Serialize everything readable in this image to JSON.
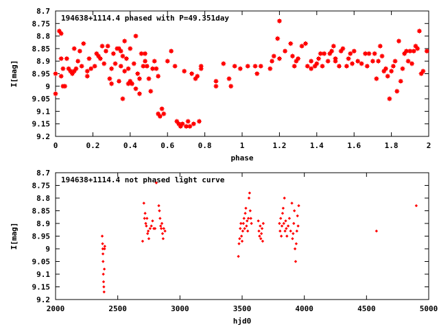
{
  "chart_data": [
    {
      "type": "scatter",
      "title": "194638+1114.4 phased with P=49.351day",
      "xlabel": "phase",
      "ylabel": "I[mag]",
      "xlim": [
        0,
        2
      ],
      "ylim": [
        9.2,
        8.7
      ],
      "y_inverted": true,
      "x_ticks": [
        "0",
        "0.2",
        "0.4",
        "0.6",
        "0.8",
        "1",
        "1.2",
        "1.4",
        "1.6",
        "1.8",
        "2"
      ],
      "y_ticks": [
        "8.7",
        "8.75",
        "8.8",
        "8.85",
        "8.9",
        "8.95",
        "9",
        "9.05",
        "9.1",
        "9.15",
        "9.2"
      ],
      "marker_color": "#ff0000",
      "points": [
        [
          0.0,
          8.95
        ],
        [
          0.0,
          9.03
        ],
        [
          0.02,
          8.78
        ],
        [
          0.03,
          8.79
        ],
        [
          0.03,
          8.89
        ],
        [
          0.03,
          8.96
        ],
        [
          0.04,
          8.93
        ],
        [
          0.04,
          9.0
        ],
        [
          0.05,
          9.0
        ],
        [
          0.06,
          8.89
        ],
        [
          0.07,
          8.93
        ],
        [
          0.08,
          8.94
        ],
        [
          0.09,
          8.95
        ],
        [
          0.1,
          8.94
        ],
        [
          0.1,
          8.85
        ],
        [
          0.11,
          8.93
        ],
        [
          0.12,
          8.9
        ],
        [
          0.13,
          8.86
        ],
        [
          0.14,
          8.92
        ],
        [
          0.15,
          8.83
        ],
        [
          0.17,
          8.96
        ],
        [
          0.17,
          8.94
        ],
        [
          0.18,
          8.89
        ],
        [
          0.19,
          8.93
        ],
        [
          0.21,
          8.92
        ],
        [
          0.22,
          8.87
        ],
        [
          0.23,
          8.88
        ],
        [
          0.24,
          8.89
        ],
        [
          0.25,
          8.84
        ],
        [
          0.26,
          8.91
        ],
        [
          0.27,
          8.86
        ],
        [
          0.28,
          8.84
        ],
        [
          0.29,
          8.97
        ],
        [
          0.3,
          8.93
        ],
        [
          0.3,
          8.99
        ],
        [
          0.31,
          8.87
        ],
        [
          0.32,
          8.91
        ],
        [
          0.33,
          8.85
        ],
        [
          0.34,
          8.85
        ],
        [
          0.34,
          8.98
        ],
        [
          0.35,
          8.86
        ],
        [
          0.35,
          8.92
        ],
        [
          0.36,
          8.88
        ],
        [
          0.36,
          9.05
        ],
        [
          0.37,
          8.82
        ],
        [
          0.37,
          8.94
        ],
        [
          0.38,
          8.89
        ],
        [
          0.39,
          8.99
        ],
        [
          0.39,
          8.93
        ],
        [
          0.4,
          8.85
        ],
        [
          0.4,
          8.98
        ],
        [
          0.41,
          8.99
        ],
        [
          0.42,
          8.91
        ],
        [
          0.43,
          8.8
        ],
        [
          0.43,
          9.01
        ],
        [
          0.44,
          8.95
        ],
        [
          0.45,
          8.97
        ],
        [
          0.45,
          9.03
        ],
        [
          0.46,
          8.87
        ],
        [
          0.47,
          8.92
        ],
        [
          0.48,
          8.9
        ],
        [
          0.48,
          8.87
        ],
        [
          0.49,
          8.92
        ],
        [
          0.5,
          8.97
        ],
        [
          0.51,
          9.02
        ],
        [
          0.52,
          8.93
        ],
        [
          0.53,
          8.9
        ],
        [
          0.54,
          8.93
        ],
        [
          0.55,
          8.96
        ],
        [
          0.55,
          9.11
        ],
        [
          0.56,
          9.12
        ],
        [
          0.57,
          9.09
        ],
        [
          0.58,
          9.11
        ],
        [
          0.6,
          8.9
        ],
        [
          0.62,
          8.86
        ],
        [
          0.64,
          8.92
        ],
        [
          0.65,
          9.14
        ],
        [
          0.66,
          9.15
        ],
        [
          0.67,
          9.16
        ],
        [
          0.68,
          9.15
        ],
        [
          0.69,
          8.94
        ],
        [
          0.7,
          9.16
        ],
        [
          0.71,
          9.14
        ],
        [
          0.72,
          9.16
        ],
        [
          0.73,
          8.95
        ],
        [
          0.74,
          9.15
        ],
        [
          0.75,
          8.97
        ],
        [
          0.76,
          8.96
        ],
        [
          0.77,
          9.14
        ],
        [
          0.78,
          8.93
        ],
        [
          0.78,
          8.92
        ],
        [
          0.86,
          8.98
        ],
        [
          0.86,
          9.0
        ],
        [
          0.9,
          8.91
        ],
        [
          0.93,
          8.97
        ],
        [
          0.94,
          9.0
        ],
        [
          0.96,
          8.92
        ],
        [
          0.99,
          8.93
        ],
        [
          1.03,
          8.92
        ],
        [
          1.07,
          8.92
        ],
        [
          1.08,
          8.95
        ],
        [
          1.1,
          8.92
        ],
        [
          1.15,
          8.93
        ],
        [
          1.16,
          8.9
        ],
        [
          1.17,
          8.88
        ],
        [
          1.19,
          8.81
        ],
        [
          1.2,
          8.74
        ],
        [
          1.2,
          8.89
        ],
        [
          1.23,
          8.86
        ],
        [
          1.26,
          8.83
        ],
        [
          1.27,
          8.88
        ],
        [
          1.28,
          8.92
        ],
        [
          1.29,
          8.9
        ],
        [
          1.3,
          8.89
        ],
        [
          1.32,
          8.84
        ],
        [
          1.34,
          8.83
        ],
        [
          1.35,
          8.92
        ],
        [
          1.37,
          8.9
        ],
        [
          1.37,
          8.93
        ],
        [
          1.39,
          8.92
        ],
        [
          1.4,
          8.91
        ],
        [
          1.41,
          8.89
        ],
        [
          1.42,
          8.87
        ],
        [
          1.43,
          8.92
        ],
        [
          1.44,
          8.87
        ],
        [
          1.46,
          8.9
        ],
        [
          1.47,
          8.87
        ],
        [
          1.48,
          8.86
        ],
        [
          1.49,
          8.84
        ],
        [
          1.5,
          8.89
        ],
        [
          1.5,
          8.9
        ],
        [
          1.52,
          8.92
        ],
        [
          1.53,
          8.86
        ],
        [
          1.54,
          8.85
        ],
        [
          1.56,
          8.92
        ],
        [
          1.57,
          8.89
        ],
        [
          1.58,
          8.87
        ],
        [
          1.59,
          8.91
        ],
        [
          1.6,
          8.86
        ],
        [
          1.62,
          8.9
        ],
        [
          1.64,
          8.91
        ],
        [
          1.66,
          8.87
        ],
        [
          1.67,
          8.92
        ],
        [
          1.68,
          8.87
        ],
        [
          1.7,
          8.9
        ],
        [
          1.71,
          8.87
        ],
        [
          1.72,
          8.97
        ],
        [
          1.73,
          8.9
        ],
        [
          1.74,
          8.84
        ],
        [
          1.75,
          8.88
        ],
        [
          1.76,
          8.94
        ],
        [
          1.77,
          8.93
        ],
        [
          1.78,
          8.96
        ],
        [
          1.79,
          9.05
        ],
        [
          1.8,
          8.94
        ],
        [
          1.81,
          8.92
        ],
        [
          1.82,
          8.9
        ],
        [
          1.83,
          9.02
        ],
        [
          1.84,
          8.82
        ],
        [
          1.85,
          8.98
        ],
        [
          1.86,
          8.93
        ],
        [
          1.87,
          8.87
        ],
        [
          1.88,
          8.86
        ],
        [
          1.89,
          8.9
        ],
        [
          1.9,
          8.86
        ],
        [
          1.91,
          8.91
        ],
        [
          1.92,
          8.86
        ],
        [
          1.93,
          8.84
        ],
        [
          1.94,
          8.85
        ],
        [
          1.95,
          8.78
        ],
        [
          1.96,
          8.95
        ],
        [
          1.97,
          8.94
        ],
        [
          1.99,
          8.86
        ]
      ]
    },
    {
      "type": "scatter",
      "title": "194638+1114.4 not phased light curve",
      "xlabel": "hjd0",
      "ylabel": "I[mag]",
      "xlim": [
        2000,
        5000
      ],
      "ylim": [
        9.2,
        8.7
      ],
      "y_inverted": true,
      "x_ticks": [
        "2000",
        "2500",
        "3000",
        "3500",
        "4000",
        "4500",
        "5000"
      ],
      "y_ticks": [
        "8.7",
        "8.75",
        "8.8",
        "8.85",
        "8.9",
        "8.95",
        "9",
        "9.05",
        "9.1",
        "9.15",
        "9.2"
      ],
      "marker_color": "#ff0000",
      "points": [
        [
          2375,
          8.95
        ],
        [
          2378,
          8.98
        ],
        [
          2380,
          9.0
        ],
        [
          2381,
          9.02
        ],
        [
          2382,
          9.05
        ],
        [
          2384,
          9.1
        ],
        [
          2386,
          9.13
        ],
        [
          2388,
          9.15
        ],
        [
          2390,
          9.17
        ],
        [
          2392,
          9.08
        ],
        [
          2394,
          9.0
        ],
        [
          2396,
          8.99
        ],
        [
          2700,
          8.97
        ],
        [
          2710,
          8.82
        ],
        [
          2715,
          8.88
        ],
        [
          2720,
          8.86
        ],
        [
          2725,
          8.9
        ],
        [
          2730,
          8.91
        ],
        [
          2735,
          8.88
        ],
        [
          2740,
          8.94
        ],
        [
          2745,
          8.93
        ],
        [
          2750,
          8.96
        ],
        [
          2760,
          8.92
        ],
        [
          2770,
          8.91
        ],
        [
          2780,
          8.89
        ],
        [
          2790,
          8.92
        ],
        [
          2800,
          8.92
        ],
        [
          2810,
          8.74
        ],
        [
          2830,
          8.83
        ],
        [
          2835,
          8.85
        ],
        [
          2840,
          8.88
        ],
        [
          2845,
          8.91
        ],
        [
          2850,
          8.92
        ],
        [
          2855,
          8.9
        ],
        [
          2860,
          8.94
        ],
        [
          2865,
          8.96
        ],
        [
          2870,
          8.92
        ],
        [
          2880,
          8.93
        ],
        [
          3470,
          9.03
        ],
        [
          3475,
          8.98
        ],
        [
          3480,
          8.96
        ],
        [
          3485,
          8.92
        ],
        [
          3490,
          8.9
        ],
        [
          3495,
          8.95
        ],
        [
          3500,
          8.97
        ],
        [
          3505,
          8.93
        ],
        [
          3510,
          8.9
        ],
        [
          3515,
          8.88
        ],
        [
          3520,
          8.92
        ],
        [
          3525,
          8.86
        ],
        [
          3530,
          8.84
        ],
        [
          3535,
          8.91
        ],
        [
          3540,
          8.89
        ],
        [
          3545,
          8.93
        ],
        [
          3550,
          8.88
        ],
        [
          3555,
          8.8
        ],
        [
          3560,
          8.78
        ],
        [
          3565,
          8.85
        ],
        [
          3570,
          8.88
        ],
        [
          3575,
          8.9
        ],
        [
          3630,
          8.89
        ],
        [
          3635,
          8.93
        ],
        [
          3640,
          8.95
        ],
        [
          3645,
          8.91
        ],
        [
          3650,
          8.96
        ],
        [
          3655,
          8.94
        ],
        [
          3660,
          8.92
        ],
        [
          3665,
          8.97
        ],
        [
          3670,
          8.9
        ],
        [
          3800,
          8.9
        ],
        [
          3805,
          8.93
        ],
        [
          3810,
          8.88
        ],
        [
          3815,
          8.95
        ],
        [
          3820,
          8.91
        ],
        [
          3825,
          8.86
        ],
        [
          3830,
          8.84
        ],
        [
          3835,
          8.9
        ],
        [
          3840,
          8.8
        ],
        [
          3845,
          8.93
        ],
        [
          3850,
          8.89
        ],
        [
          3855,
          8.92
        ],
        [
          3860,
          8.95
        ],
        [
          3870,
          8.91
        ],
        [
          3880,
          8.88
        ],
        [
          3890,
          8.93
        ],
        [
          3900,
          8.82
        ],
        [
          3905,
          8.96
        ],
        [
          3910,
          8.94
        ],
        [
          3915,
          8.9
        ],
        [
          3920,
          8.85
        ],
        [
          3925,
          9.0
        ],
        [
          3930,
          9.05
        ],
        [
          3935,
          8.98
        ],
        [
          3940,
          8.93
        ],
        [
          3945,
          8.87
        ],
        [
          3950,
          8.91
        ],
        [
          3955,
          8.83
        ],
        [
          4580,
          8.93
        ],
        [
          4900,
          8.83
        ]
      ]
    }
  ]
}
